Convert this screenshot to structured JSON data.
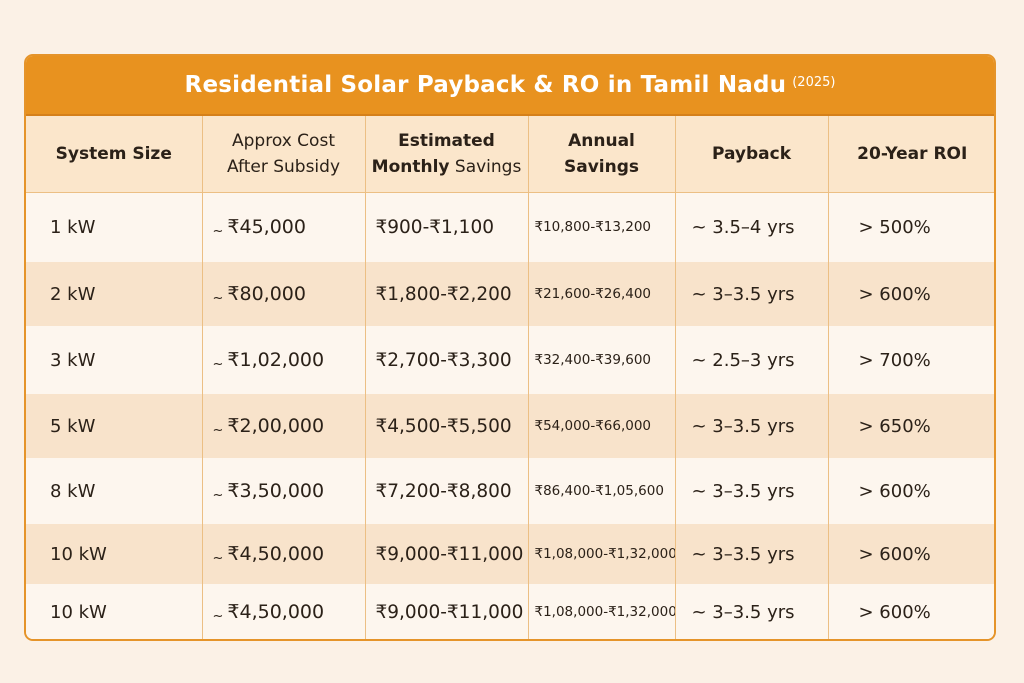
{
  "title": "Residential Solar Payback & RO in Tamil Nadu",
  "title_suffix": "(2025)",
  "colors": {
    "accent": "#e8921f",
    "header_bg": "#fbe6cb",
    "row_alt": "#f8e3cb",
    "grid_line": "#ecbf84"
  },
  "chart_data": {
    "type": "table",
    "title": "Residential Solar Payback & RO in Tamil Nadu (2025)",
    "columns": [
      {
        "line1": "System Size",
        "line2": ""
      },
      {
        "line1": "Approx Cost",
        "line2": "After Subsidy"
      },
      {
        "line1": "Estimated",
        "line2a": "Monthly",
        "line2b": " Savings"
      },
      {
        "line1": "Annual",
        "line2": "Savings"
      },
      {
        "line1": "Payback",
        "line2": ""
      },
      {
        "line1": "20-Year ROI",
        "line2": ""
      }
    ],
    "rows": [
      {
        "size": "1 kW",
        "cost": "₹45,000",
        "monthly": "₹900-₹1,100",
        "annual": "₹10,800-₹13,200",
        "payback": "~ 3.5–4 yrs",
        "roi": "> 500%"
      },
      {
        "size": "2 kW",
        "cost": "₹80,000",
        "monthly": "₹1,800-₹2,200",
        "annual": "₹21,600-₹26,400",
        "payback": "~ 3–3.5 yrs",
        "roi": "> 600%"
      },
      {
        "size": "3 kW",
        "cost": "₹1,02,000",
        "monthly": "₹2,700-₹3,300",
        "annual": "₹32,400-₹39,600",
        "payback": "~ 2.5–3 yrs",
        "roi": "> 700%"
      },
      {
        "size": "5 kW",
        "cost": "₹2,00,000",
        "monthly": "₹4,500-₹5,500",
        "annual": "₹54,000-₹66,000",
        "payback": "~ 3–3.5 yrs",
        "roi": "> 650%"
      },
      {
        "size": "8 kW",
        "cost": "₹3,50,000",
        "monthly": "₹7,200-₹8,800",
        "annual": "₹86,400-₹1,05,600",
        "payback": "~ 3–3.5 yrs",
        "roi": "> 600%"
      },
      {
        "size": "10 kW",
        "cost": "₹4,50,000",
        "monthly": "₹9,000-₹11,000",
        "annual": "₹1,08,000-₹1,32,000",
        "payback": "~ 3–3.5 yrs",
        "roi": "> 600%"
      },
      {
        "size": "10 kW",
        "cost": "₹4,50,000",
        "monthly": "₹9,000-₹11,000",
        "annual": "₹1,08,000-₹1,32,000",
        "payback": "~ 3–3.5 yrs",
        "roi": "> 600%"
      }
    ],
    "cost_prefix": "~"
  }
}
